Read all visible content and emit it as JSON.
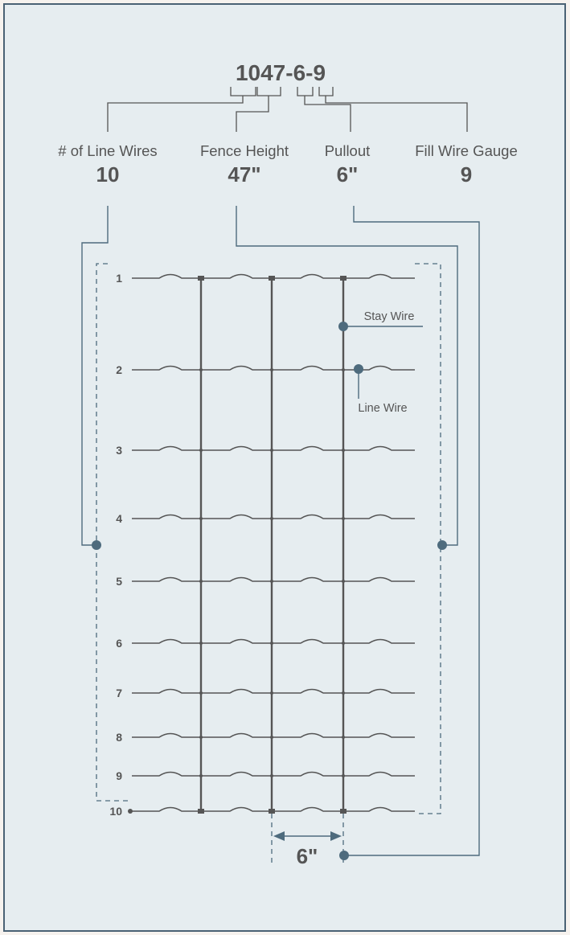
{
  "product_code": "1047-6-9",
  "specs": [
    {
      "key": "line_wires",
      "label": "# of Line Wires",
      "value": "10"
    },
    {
      "key": "fence_height",
      "label": "Fence Height",
      "value": "47\""
    },
    {
      "key": "pullout",
      "label": "Pullout",
      "value": "6\""
    },
    {
      "key": "fill_wire_gauge",
      "label": "Fill Wire Gauge",
      "value": "9"
    }
  ],
  "wire_numbers": [
    "1",
    "2",
    "3",
    "4",
    "5",
    "6",
    "7",
    "8",
    "9",
    "10"
  ],
  "callouts": {
    "stay_wire": "Stay Wire",
    "line_wire": "Line Wire"
  },
  "stay_spacing_label": "6\"",
  "colors": {
    "panel_background": "#e6edf0",
    "panel_border": "#4a6274",
    "wire": "#555555",
    "connector": "#4e6b7d"
  }
}
